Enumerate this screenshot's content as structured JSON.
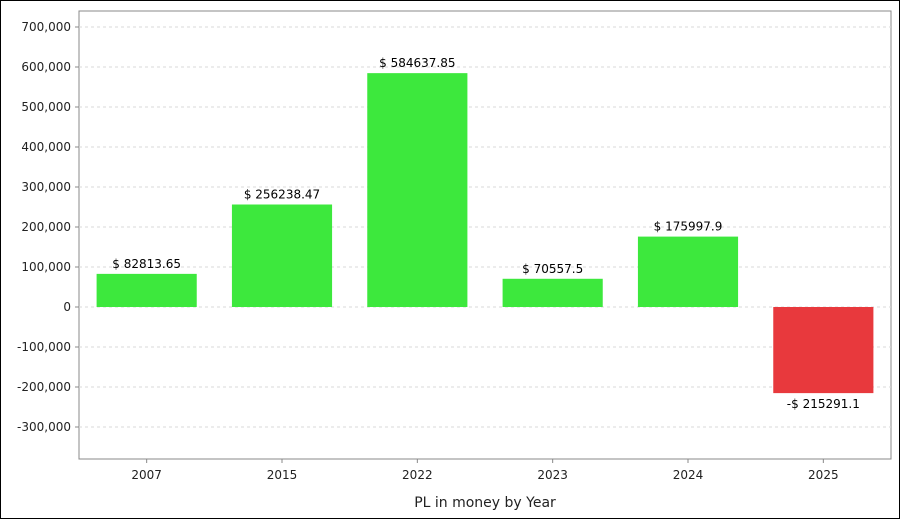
{
  "chart_data": {
    "type": "bar",
    "xlabel": "PL in money by Year",
    "ylabel": "",
    "ylim": [
      -380000,
      740000
    ],
    "yticks": [
      -300000,
      -200000,
      -100000,
      0,
      100000,
      200000,
      300000,
      400000,
      500000,
      600000,
      700000
    ],
    "ytick_labels": [
      "-300,000",
      "-200,000",
      "-100,000",
      "0",
      "100,000",
      "200,000",
      "300,000",
      "400,000",
      "500,000",
      "600,000",
      "700,000"
    ],
    "grid": true,
    "categories": [
      "2007",
      "2015",
      "2022",
      "2023",
      "2024",
      "2025"
    ],
    "values": [
      82813.65,
      256238.47,
      584637.85,
      70557.5,
      175997.9,
      -215291.1
    ],
    "data_labels": [
      "$ 82813.65",
      "$ 256238.47",
      "$ 584637.85",
      "$ 70557.5",
      "$ 175997.9",
      "-$ 215291.1"
    ],
    "colors": {
      "positive": "#3de83d",
      "negative": "#e8393d",
      "grid": "#d8d8d8",
      "axis": "#888888"
    }
  }
}
